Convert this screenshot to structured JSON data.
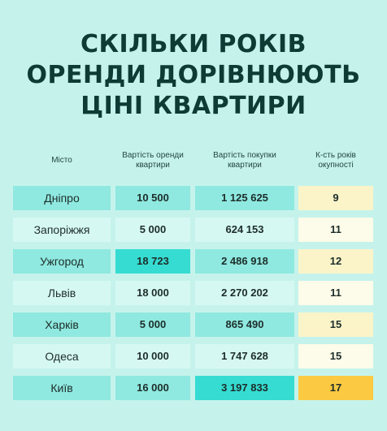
{
  "title": {
    "line1": "СКІЛЬКИ РОКІВ",
    "line2": "ОРЕНДИ ДОРІВНЮЮТЬ",
    "line3": "ЦІНІ КВАРТИРИ"
  },
  "headers": {
    "city": "Місто",
    "rent_line1": "Вартість оренди",
    "rent_line2": "квартири",
    "buy_line1": "Вартість покупки",
    "buy_line2": "квартири",
    "years_line1": "К-сть років",
    "years_line2": "окупності"
  },
  "colors": {
    "background": "#c5f3ec",
    "row_dark": "#8fe9e0",
    "row_light": "#d6f8f3",
    "highlight_cyan": "#36dcd2",
    "years_cream": "#fbf4c9",
    "years_white": "#fdfbe9",
    "years_max": "#fcc943",
    "title": "#0e3b34"
  },
  "rows": [
    {
      "city": "Дніпро",
      "rent": "10 500",
      "buy": "1 125 625",
      "years": "9"
    },
    {
      "city": "Запоріжжя",
      "rent": "5 000",
      "buy": "624 153",
      "years": "11"
    },
    {
      "city": "Ужгород",
      "rent": "18 723",
      "buy": "2 486 918",
      "years": "12"
    },
    {
      "city": "Львів",
      "rent": "18 000",
      "buy": "2 270 202",
      "years": "11"
    },
    {
      "city": "Харків",
      "rent": "5 000",
      "buy": "865 490",
      "years": "15"
    },
    {
      "city": "Одеса",
      "rent": "10 000",
      "buy": "1 747 628",
      "years": "15"
    },
    {
      "city": "Київ",
      "rent": "16 000",
      "buy": "3 197 833",
      "years": "17"
    }
  ]
}
